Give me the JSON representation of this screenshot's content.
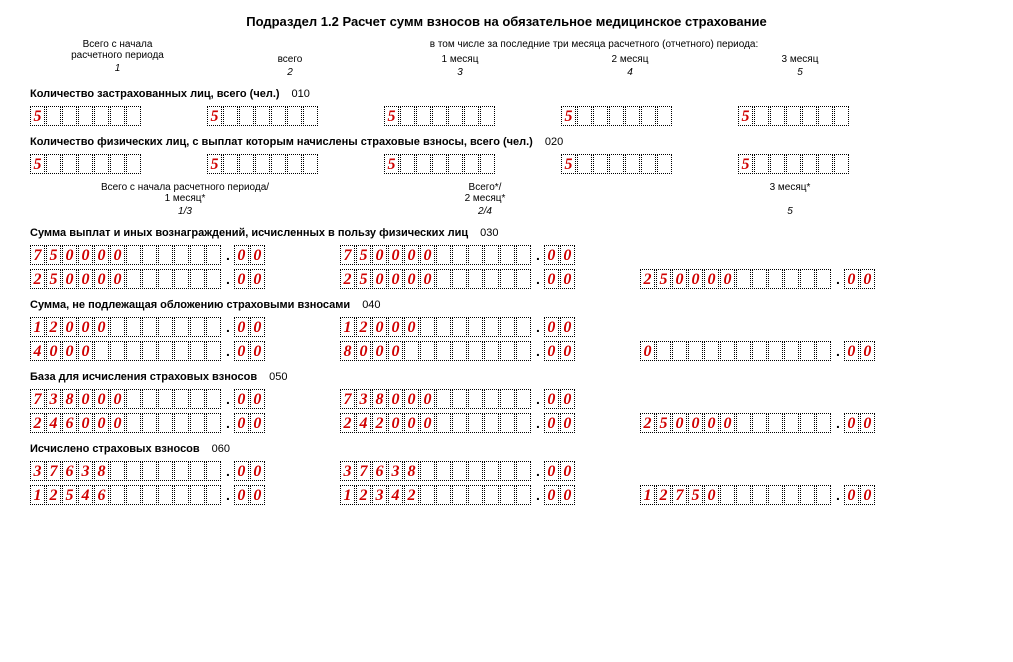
{
  "title": "Подраздел 1.2 Расчет сумм взносов на обязательное медицинское страхование",
  "topHeader": {
    "col1_l1": "Всего с начала",
    "col1_l2": "расчетного периода",
    "col1_n": "1",
    "rightLabel": "в том числе за последние три месяца расчетного (отчетного) периода:",
    "col2_l1": "всего",
    "col2_n": "2",
    "col3_l1": "1 месяц",
    "col3_n": "3",
    "col4_l1": "2 месяц",
    "col4_n": "4",
    "col5_l1": "3 месяц",
    "col5_n": "5"
  },
  "row010": {
    "label": "Количество застрахованных лиц, всего (чел.)",
    "code": "010",
    "cells": 7,
    "values": [
      "5",
      "5",
      "5",
      "5",
      "5"
    ]
  },
  "row020": {
    "label": "Количество физических лиц, с выплат которым начислены страховые взносы, всего (чел.)",
    "code": "020",
    "cells": 7,
    "values": [
      "5",
      "5",
      "5",
      "5",
      "5"
    ]
  },
  "subHeader": {
    "c1_l1": "Всего с начала расчетного периода/",
    "c1_l2": "1 месяц*",
    "c1_n": "1/3",
    "c2_l1": "Всего*/",
    "c2_l2": "2 месяц*",
    "c2_n": "2/4",
    "c3_l1": "",
    "c3_l2": "3 месяц*",
    "c3_n": "5"
  },
  "section030": {
    "label": "Сумма выплат и иных вознаграждений, исчисленных в пользу физических лиц",
    "code": "030",
    "row1": {
      "a_int": "750000",
      "a_dec": "00",
      "b_int": "750000",
      "b_dec": "00",
      "c_int": null,
      "c_dec": null
    },
    "row2": {
      "a_int": "250000",
      "a_dec": "00",
      "b_int": "250000",
      "b_dec": "00",
      "c_int": "250000",
      "c_dec": "00"
    }
  },
  "section040": {
    "label": "Сумма, не подлежащая обложению страховыми взносами",
    "code": "040",
    "row1": {
      "a_int": "12000",
      "a_dec": "00",
      "b_int": "12000",
      "b_dec": "00",
      "c_int": null,
      "c_dec": null
    },
    "row2": {
      "a_int": "4000",
      "a_dec": "00",
      "b_int": "8000",
      "b_dec": "00",
      "c_int": "0",
      "c_dec": "00"
    }
  },
  "section050": {
    "label": "База для исчисления страховых взносов",
    "code": "050",
    "row1": {
      "a_int": "738000",
      "a_dec": "00",
      "b_int": "738000",
      "b_dec": "00",
      "c_int": null,
      "c_dec": null
    },
    "row2": {
      "a_int": "246000",
      "a_dec": "00",
      "b_int": "242000",
      "b_dec": "00",
      "c_int": "250000",
      "c_dec": "00"
    }
  },
  "section060": {
    "label": "Исчислено страховых взносов",
    "code": "060",
    "row1": {
      "a_int": "37638",
      "a_dec": "00",
      "b_int": "37638",
      "b_dec": "00",
      "c_int": null,
      "c_dec": null
    },
    "row2": {
      "a_int": "12546",
      "a_dec": "00",
      "b_int": "12342",
      "b_dec": "00",
      "c_int": "12750",
      "c_dec": "00"
    }
  },
  "style": {
    "intCells": 12,
    "decCells": 2,
    "digitColor": "#d00000",
    "borderStyle": "dotted"
  }
}
